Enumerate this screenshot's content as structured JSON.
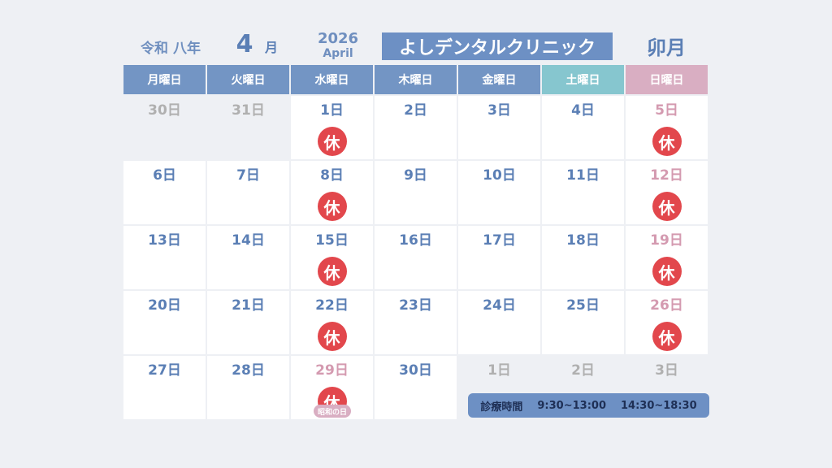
{
  "header": {
    "era": "令和 八年",
    "month_number": "4",
    "month_unit": "月",
    "year": "2026",
    "month_en": "April",
    "clinic": "よしデンタルクリニック",
    "month_old": "卯月"
  },
  "weekdays": [
    {
      "label": "月曜日",
      "color": "#7395c4"
    },
    {
      "label": "火曜日",
      "color": "#7395c4"
    },
    {
      "label": "水曜日",
      "color": "#7395c4"
    },
    {
      "label": "木曜日",
      "color": "#7395c4"
    },
    {
      "label": "金曜日",
      "color": "#7395c4"
    },
    {
      "label": "土曜日",
      "color": "#86c6cf"
    },
    {
      "label": "日曜日",
      "color": "#d9aec2"
    }
  ],
  "weeks": [
    [
      {
        "day": "30日",
        "color": "#b0b0b0",
        "bg": "#eef0f4"
      },
      {
        "day": "31日",
        "color": "#b0b0b0",
        "bg": "#eef0f4"
      },
      {
        "day": "1日",
        "color": "#5b7fb5",
        "bg": "#ffffff",
        "mark": "休"
      },
      {
        "day": "2日",
        "color": "#5b7fb5",
        "bg": "#ffffff"
      },
      {
        "day": "3日",
        "color": "#5b7fb5",
        "bg": "#ffffff"
      },
      {
        "day": "4日",
        "color": "#5b7fb5",
        "bg": "#ffffff"
      },
      {
        "day": "5日",
        "color": "#d49ab0",
        "bg": "#ffffff",
        "mark": "休"
      }
    ],
    [
      {
        "day": "6日",
        "color": "#5b7fb5",
        "bg": "#ffffff"
      },
      {
        "day": "7日",
        "color": "#5b7fb5",
        "bg": "#ffffff"
      },
      {
        "day": "8日",
        "color": "#5b7fb5",
        "bg": "#ffffff",
        "mark": "休"
      },
      {
        "day": "9日",
        "color": "#5b7fb5",
        "bg": "#ffffff"
      },
      {
        "day": "10日",
        "color": "#5b7fb5",
        "bg": "#ffffff"
      },
      {
        "day": "11日",
        "color": "#5b7fb5",
        "bg": "#ffffff"
      },
      {
        "day": "12日",
        "color": "#d49ab0",
        "bg": "#ffffff",
        "mark": "休"
      }
    ],
    [
      {
        "day": "13日",
        "color": "#5b7fb5",
        "bg": "#ffffff"
      },
      {
        "day": "14日",
        "color": "#5b7fb5",
        "bg": "#ffffff"
      },
      {
        "day": "15日",
        "color": "#5b7fb5",
        "bg": "#ffffff",
        "mark": "休"
      },
      {
        "day": "16日",
        "color": "#5b7fb5",
        "bg": "#ffffff"
      },
      {
        "day": "17日",
        "color": "#5b7fb5",
        "bg": "#ffffff"
      },
      {
        "day": "18日",
        "color": "#5b7fb5",
        "bg": "#ffffff"
      },
      {
        "day": "19日",
        "color": "#d49ab0",
        "bg": "#ffffff",
        "mark": "休"
      }
    ],
    [
      {
        "day": "20日",
        "color": "#5b7fb5",
        "bg": "#ffffff"
      },
      {
        "day": "21日",
        "color": "#5b7fb5",
        "bg": "#ffffff"
      },
      {
        "day": "22日",
        "color": "#5b7fb5",
        "bg": "#ffffff",
        "mark": "休"
      },
      {
        "day": "23日",
        "color": "#5b7fb5",
        "bg": "#ffffff"
      },
      {
        "day": "24日",
        "color": "#5b7fb5",
        "bg": "#ffffff"
      },
      {
        "day": "25日",
        "color": "#5b7fb5",
        "bg": "#ffffff"
      },
      {
        "day": "26日",
        "color": "#d49ab0",
        "bg": "#ffffff",
        "mark": "休"
      }
    ],
    [
      {
        "day": "27日",
        "color": "#5b7fb5",
        "bg": "#ffffff"
      },
      {
        "day": "28日",
        "color": "#5b7fb5",
        "bg": "#ffffff"
      },
      {
        "day": "29日",
        "color": "#d49ab0",
        "bg": "#ffffff",
        "mark": "休",
        "note": "昭和の日"
      },
      {
        "day": "30日",
        "color": "#5b7fb5",
        "bg": "#ffffff"
      },
      {
        "day": "1日",
        "color": "#b0b0b0",
        "bg": "#eef0f4"
      },
      {
        "day": "2日",
        "color": "#b0b0b0",
        "bg": "#eef0f4"
      },
      {
        "day": "3日",
        "color": "#b0b0b0",
        "bg": "#eef0f4"
      }
    ]
  ],
  "hours": {
    "label": "診療時間",
    "morning": "9:30~13:00",
    "afternoon": "14:30~18:30"
  }
}
